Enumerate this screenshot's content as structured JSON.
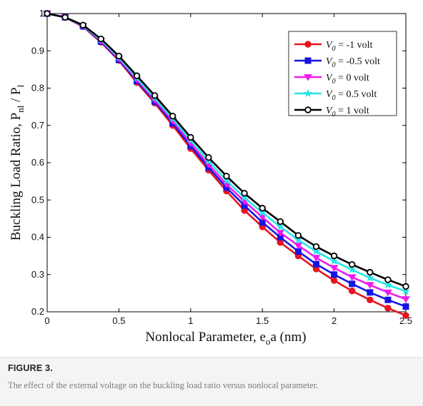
{
  "chart_data": {
    "type": "line",
    "xlabel_main": "Nonlocal Parameter, e",
    "xlabel_sub": "o",
    "xlabel_rest": "a (nm)",
    "ylabel_main": "Buckling Load Ratio, P",
    "ylabel_sub1": "nl",
    "ylabel_mid": " / P",
    "ylabel_sub2": "l",
    "xlim": [
      0,
      2.5
    ],
    "ylim": [
      0.2,
      1.0
    ],
    "xticks": [
      "0",
      "0.5",
      "1",
      "1.5",
      "2",
      "2.5"
    ],
    "yticks": [
      "0.2",
      "0.3",
      "0.4",
      "0.5",
      "0.6",
      "0.7",
      "0.8",
      "0.9",
      "1"
    ],
    "legend_position": "top-right",
    "x": [
      0,
      0.125,
      0.25,
      0.375,
      0.5,
      0.625,
      0.75,
      0.875,
      1.0,
      1.125,
      1.25,
      1.375,
      1.5,
      1.625,
      1.75,
      1.875,
      2.0,
      2.125,
      2.25,
      2.375,
      2.5
    ],
    "series": [
      {
        "name": "= -1 volt",
        "v_label": "V",
        "v_sub": "0",
        "color": "#e8141e",
        "marker": "circle",
        "values": [
          1.0,
          0.99,
          0.965,
          0.923,
          0.874,
          0.815,
          0.76,
          0.7,
          0.638,
          0.58,
          0.524,
          0.472,
          0.428,
          0.386,
          0.35,
          0.315,
          0.284,
          0.256,
          0.232,
          0.21,
          0.19
        ]
      },
      {
        "name": "= -0.5 volt",
        "v_label": "V",
        "v_sub": "0",
        "color": "#1414e6",
        "marker": "square",
        "values": [
          1.0,
          0.99,
          0.966,
          0.925,
          0.876,
          0.819,
          0.764,
          0.706,
          0.645,
          0.587,
          0.533,
          0.485,
          0.44,
          0.4,
          0.362,
          0.328,
          0.3,
          0.275,
          0.252,
          0.232,
          0.214
        ]
      },
      {
        "name": "= 0 volt",
        "v_label": "V",
        "v_sub": "0",
        "color": "#ee1aee",
        "marker": "triangle-down",
        "values": [
          1.0,
          0.99,
          0.967,
          0.927,
          0.879,
          0.823,
          0.768,
          0.712,
          0.652,
          0.595,
          0.542,
          0.496,
          0.454,
          0.412,
          0.378,
          0.345,
          0.318,
          0.293,
          0.272,
          0.252,
          0.234
        ]
      },
      {
        "name": "= 0.5 volt",
        "v_label": "V",
        "v_sub": "0",
        "color": "#22e6e6",
        "marker": "star",
        "values": [
          1.0,
          0.99,
          0.968,
          0.929,
          0.882,
          0.827,
          0.773,
          0.718,
          0.66,
          0.604,
          0.552,
          0.506,
          0.466,
          0.428,
          0.393,
          0.362,
          0.336,
          0.313,
          0.291,
          0.272,
          0.255
        ]
      },
      {
        "name": "= 1 volt",
        "v_label": "V",
        "v_sub": "0",
        "color": "#000000",
        "marker": "circle-open",
        "values": [
          1.0,
          0.99,
          0.969,
          0.932,
          0.886,
          0.833,
          0.78,
          0.725,
          0.668,
          0.614,
          0.564,
          0.518,
          0.478,
          0.442,
          0.405,
          0.375,
          0.35,
          0.327,
          0.306,
          0.286,
          0.268
        ]
      }
    ]
  },
  "caption": {
    "label": "FIGURE 3.",
    "text": "The effect of the external voltage on the buckling load ratio versus nonlocal parameter."
  }
}
